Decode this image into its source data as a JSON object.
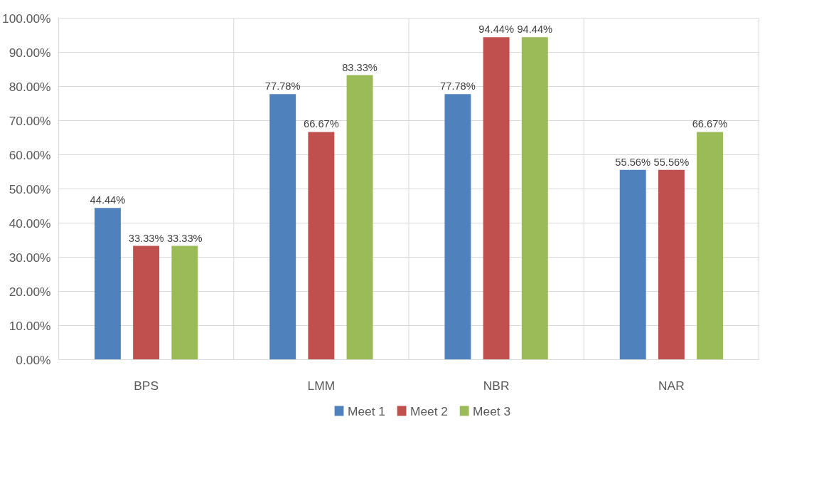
{
  "chart_data": {
    "type": "bar",
    "categories": [
      "BPS",
      "LMM",
      "NBR",
      "NAR"
    ],
    "series": [
      {
        "name": "Meet 1",
        "color": "#4f81bd",
        "values": [
          44.44,
          77.78,
          77.78,
          55.56
        ],
        "value_labels": [
          "44.44%",
          "77.78%",
          "77.78%",
          "55.56%"
        ]
      },
      {
        "name": "Meet 2",
        "color": "#c0504d",
        "values": [
          33.33,
          66.67,
          94.44,
          55.56
        ],
        "value_labels": [
          "33.33%",
          "66.67%",
          "94.44%",
          "55.56%"
        ]
      },
      {
        "name": "Meet 3",
        "color": "#9bbb59",
        "values": [
          33.33,
          83.33,
          94.44,
          66.67
        ],
        "value_labels": [
          "33.33%",
          "83.33%",
          "94.44%",
          "66.67%"
        ]
      }
    ],
    "ylim": [
      0,
      100
    ],
    "yticks": [
      {
        "value": 0,
        "label": "0.00%"
      },
      {
        "value": 10,
        "label": "10.00%"
      },
      {
        "value": 20,
        "label": "20.00%"
      },
      {
        "value": 30,
        "label": "30.00%"
      },
      {
        "value": 40,
        "label": "40.00%"
      },
      {
        "value": 50,
        "label": "50.00%"
      },
      {
        "value": 60,
        "label": "60.00%"
      },
      {
        "value": 70,
        "label": "70.00%"
      },
      {
        "value": 80,
        "label": "80.00%"
      },
      {
        "value": 90,
        "label": "90.00%"
      },
      {
        "value": 100,
        "label": "100.00%"
      }
    ],
    "grid": true,
    "legend": "bottom"
  }
}
